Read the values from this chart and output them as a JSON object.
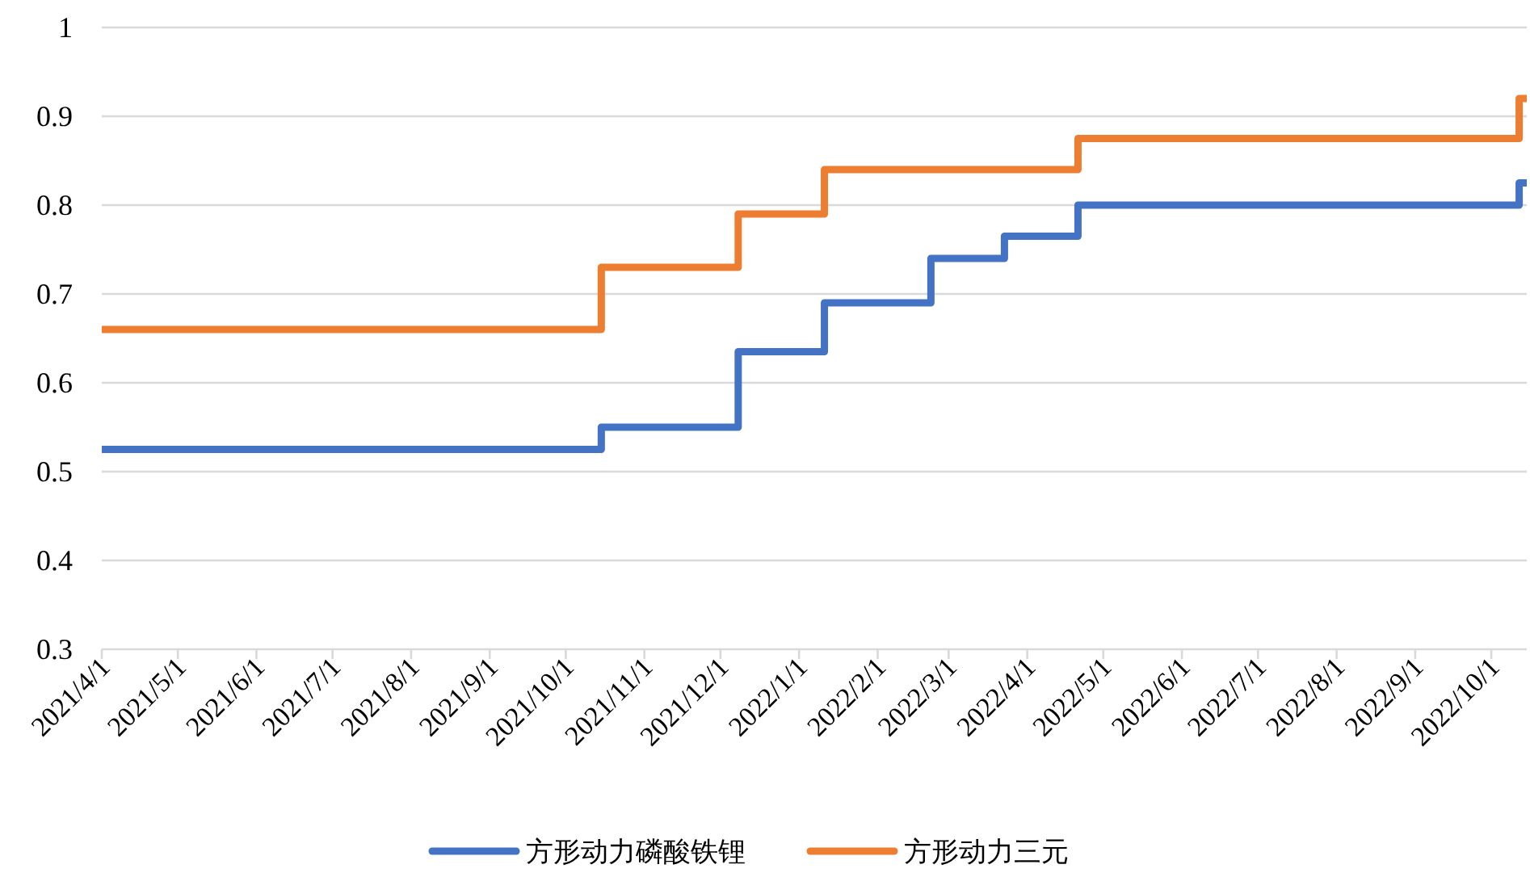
{
  "chart_data": {
    "type": "step",
    "legend": "bottom",
    "grid": "y",
    "line_style": "solid",
    "marker": "none",
    "xlim": [
      "2021-04-01",
      "2022-10-15"
    ],
    "xticks": [
      {
        "value": "2021-04-01",
        "label": "2021/4/1"
      },
      {
        "value": "2021-05-01",
        "label": "2021/5/1"
      },
      {
        "value": "2021-06-01",
        "label": "2021/6/1"
      },
      {
        "value": "2021-07-01",
        "label": "2021/7/1"
      },
      {
        "value": "2021-08-01",
        "label": "2021/8/1"
      },
      {
        "value": "2021-09-01",
        "label": "2021/9/1"
      },
      {
        "value": "2021-10-01",
        "label": "2021/10/1"
      },
      {
        "value": "2021-11-01",
        "label": "2021/11/1"
      },
      {
        "value": "2021-12-01",
        "label": "2021/12/1"
      },
      {
        "value": "2022-01-01",
        "label": "2022/1/1"
      },
      {
        "value": "2022-02-01",
        "label": "2022/2/1"
      },
      {
        "value": "2022-03-01",
        "label": "2022/3/1"
      },
      {
        "value": "2022-04-01",
        "label": "2022/4/1"
      },
      {
        "value": "2022-05-01",
        "label": "2022/5/1"
      },
      {
        "value": "2022-06-01",
        "label": "2022/6/1"
      },
      {
        "value": "2022-07-01",
        "label": "2022/7/1"
      },
      {
        "value": "2022-08-01",
        "label": "2022/8/1"
      },
      {
        "value": "2022-09-01",
        "label": "2022/9/1"
      },
      {
        "value": "2022-10-01",
        "label": "2022/10/1"
      }
    ],
    "ylim": [
      0.3,
      1
    ],
    "yticks": [
      0.3,
      0.4,
      0.5,
      0.6,
      0.7,
      0.8,
      0.9,
      1
    ],
    "series": [
      {
        "name": "方形动力磷酸铁锂",
        "color": "#4472c4",
        "x": [
          "2021-04-01",
          "2021-10-15",
          "2021-12-08",
          "2022-01-11",
          "2022-02-22",
          "2022-03-23",
          "2022-04-21",
          "2022-10-12",
          "2022-10-15"
        ],
        "values": [
          0.525,
          0.55,
          0.635,
          0.69,
          0.74,
          0.765,
          0.8,
          0.825,
          0.825
        ]
      },
      {
        "name": "方形动力三元",
        "color": "#ed7d31",
        "x": [
          "2021-04-01",
          "2021-10-15",
          "2021-12-08",
          "2022-01-11",
          "2022-04-21",
          "2022-10-12",
          "2022-10-15"
        ],
        "values": [
          0.66,
          0.73,
          0.79,
          0.84,
          0.875,
          0.92,
          0.92
        ]
      }
    ]
  }
}
